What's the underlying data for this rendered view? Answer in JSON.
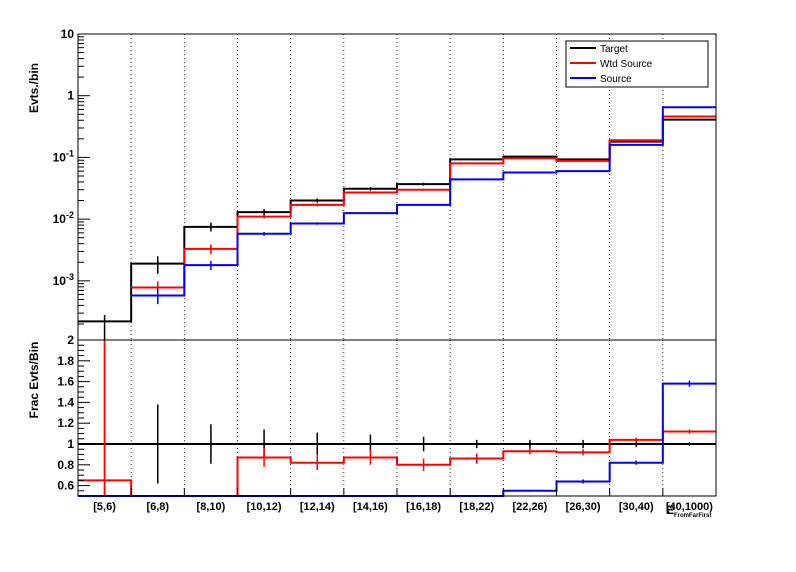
{
  "chart_data": [
    {
      "type": "line",
      "subtype": "step-histogram",
      "yscale": "log",
      "ylabel": "Evts./bin",
      "ylim": [
        0.00011,
        10
      ],
      "yticks": [
        {
          "value": 0.001,
          "base": "10",
          "exp": "-3"
        },
        {
          "value": 0.01,
          "base": "10",
          "exp": "-2"
        },
        {
          "value": 0.1,
          "base": "10",
          "exp": "-1"
        },
        {
          "value": 1,
          "text": "1"
        },
        {
          "value": 10,
          "text": "10"
        }
      ],
      "grid_x": true,
      "legend_position": "top-right",
      "categories": [
        "[5,6)",
        "[6,8)",
        "[8,10)",
        "[10,12)",
        "[12,14)",
        "[14,16)",
        "[16,18)",
        "[18,22)",
        "[22,26)",
        "[26,30)",
        "[30,40)",
        "[40,1000)"
      ],
      "series": [
        {
          "name": "Target",
          "color": "#000000",
          "values": [
            0.00022,
            0.0019,
            0.0075,
            0.013,
            0.02,
            0.031,
            0.037,
            0.093,
            0.103,
            0.093,
            0.18,
            0.41
          ],
          "err_low": [
            0.00011,
            0.0013,
            0.0063,
            0.0115,
            0.0185,
            0.029,
            0.035,
            0.09,
            0.1,
            0.09,
            0.175,
            0.4
          ],
          "err_high": [
            0.00028,
            0.0025,
            0.0088,
            0.0145,
            0.0215,
            0.033,
            0.039,
            0.096,
            0.106,
            0.096,
            0.185,
            0.42
          ]
        },
        {
          "name": "Wtd Source",
          "color": "#ff0000",
          "values": [
            null,
            0.00078,
            0.0033,
            0.011,
            0.017,
            0.027,
            0.03,
            0.08,
            0.097,
            0.088,
            0.19,
            0.46
          ],
          "err_low": [
            null,
            0.00055,
            0.0027,
            0.0102,
            0.016,
            0.0258,
            0.029,
            0.078,
            0.095,
            0.086,
            0.187,
            0.455
          ],
          "err_high": [
            null,
            0.00098,
            0.0039,
            0.0118,
            0.018,
            0.0282,
            0.031,
            0.082,
            0.099,
            0.09,
            0.193,
            0.465
          ]
        },
        {
          "name": "Source",
          "color": "#0000ff",
          "values": [
            null,
            0.00058,
            0.0018,
            0.0058,
            0.0085,
            0.0125,
            0.017,
            0.044,
            0.057,
            0.06,
            0.16,
            0.65
          ],
          "err_low": [
            null,
            0.00042,
            0.0015,
            0.0054,
            0.0081,
            0.0121,
            0.0165,
            0.043,
            0.056,
            0.059,
            0.158,
            0.64
          ],
          "err_high": [
            null,
            0.00074,
            0.0021,
            0.0062,
            0.0089,
            0.0129,
            0.0175,
            0.045,
            0.058,
            0.061,
            0.162,
            0.66
          ]
        }
      ]
    },
    {
      "type": "line",
      "subtype": "step-histogram",
      "ylabel": "Frac Evts/Bin",
      "xlabel": "E",
      "xlabel_sub": "FromFarFirst",
      "ylim": [
        0.5,
        2
      ],
      "yticks": [
        {
          "value": 0.6,
          "text": "0.6"
        },
        {
          "value": 0.8,
          "text": "0.8"
        },
        {
          "value": 1,
          "text": "1"
        },
        {
          "value": 1.2,
          "text": "1.2"
        },
        {
          "value": 1.4,
          "text": "1.4"
        },
        {
          "value": 1.6,
          "text": "1.6"
        },
        {
          "value": 1.8,
          "text": "1.8"
        },
        {
          "value": 2,
          "text": "2"
        }
      ],
      "categories": [
        "[5,6)",
        "[6,8)",
        "[8,10)",
        "[10,12)",
        "[12,14)",
        "[14,16)",
        "[16,18)",
        "[18,22)",
        "[22,26)",
        "[26,30)",
        "[30,40)",
        "[40,1000)"
      ],
      "series": [
        {
          "name": "Target",
          "color": "#000000",
          "values": [
            1,
            1,
            1,
            1,
            1,
            1,
            1,
            1,
            1,
            1,
            1,
            1
          ],
          "err_low": [
            0.5,
            0.62,
            0.81,
            0.87,
            0.9,
            0.92,
            0.93,
            0.96,
            0.96,
            0.96,
            0.97,
            0.98
          ],
          "err_high": [
            2,
            1.38,
            1.19,
            1.14,
            1.11,
            1.09,
            1.07,
            1.04,
            1.04,
            1.04,
            1.03,
            1.02
          ]
        },
        {
          "name": "Wtd Source",
          "color": "#ff0000",
          "values": [
            0.65,
            0.5,
            0.5,
            0.87,
            0.82,
            0.87,
            0.8,
            0.86,
            0.93,
            0.92,
            1.04,
            1.12
          ],
          "err_low": [
            0.5,
            null,
            null,
            0.78,
            0.75,
            0.8,
            0.74,
            0.81,
            0.9,
            0.89,
            1.02,
            1.1
          ],
          "err_high": [
            2,
            null,
            null,
            0.96,
            0.9,
            0.95,
            0.86,
            0.91,
            0.97,
            0.95,
            1.06,
            1.14
          ]
        },
        {
          "name": "Source",
          "color": "#0000ff",
          "values": [
            0.5,
            0.5,
            0.5,
            0.5,
            0.5,
            0.5,
            0.5,
            0.5,
            0.55,
            0.64,
            0.82,
            1.58
          ],
          "err_low": [
            null,
            null,
            null,
            null,
            null,
            null,
            null,
            null,
            0.54,
            0.62,
            0.8,
            1.55
          ],
          "err_high": [
            null,
            null,
            null,
            null,
            null,
            null,
            null,
            null,
            0.56,
            0.66,
            0.84,
            1.61
          ]
        }
      ]
    }
  ]
}
